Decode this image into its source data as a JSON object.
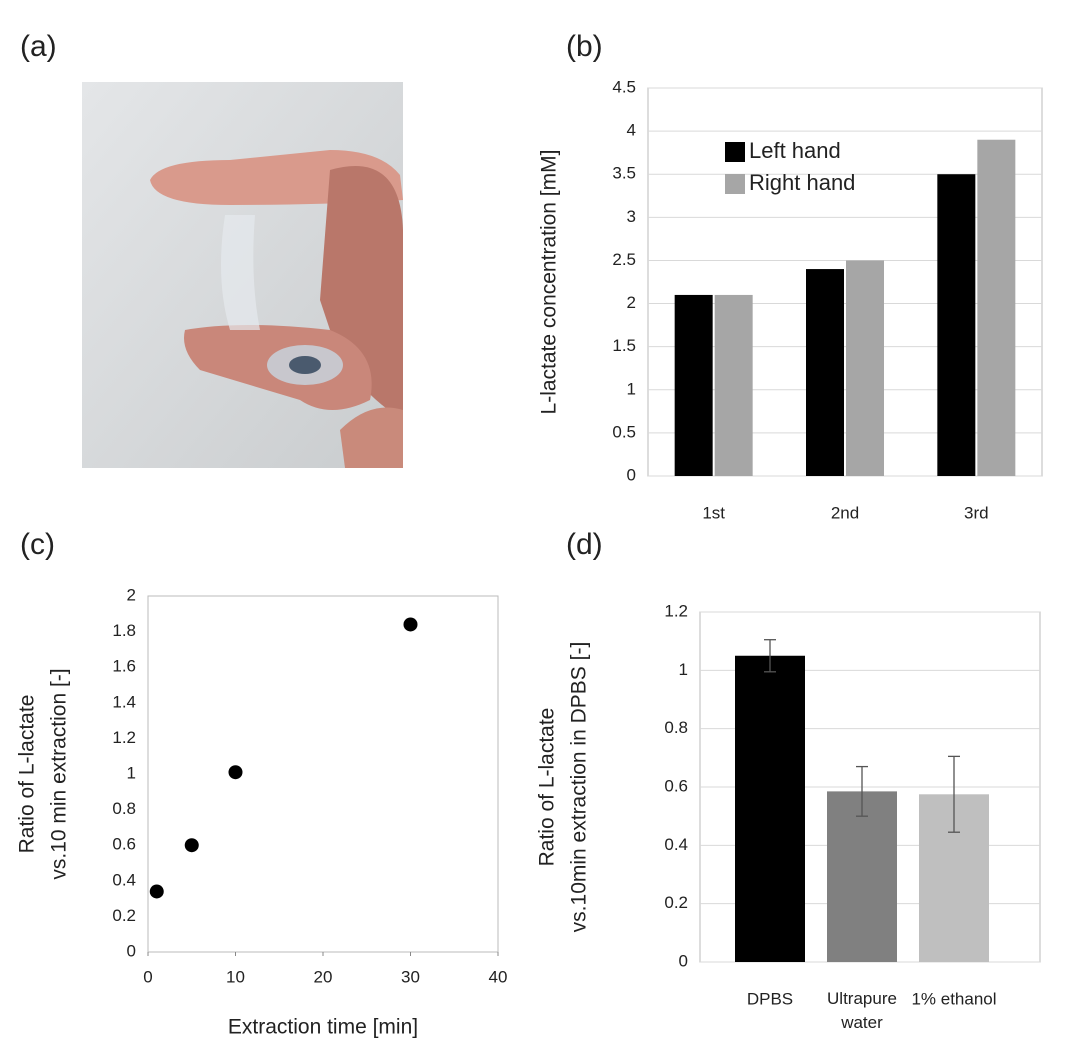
{
  "panel_labels": [
    "(a)",
    "(b)",
    "(c)",
    "(d)"
  ],
  "chart_data": [
    {
      "type": "bar",
      "ylabel": [
        "L-lactate concentration [mM]"
      ],
      "categories": [
        "1st",
        "2nd",
        "3rd"
      ],
      "series": [
        {
          "name": "Left hand",
          "color": "#000000",
          "values": [
            2.1,
            2.4,
            3.5
          ]
        },
        {
          "name": "Right hand",
          "color": "#a6a6a6",
          "values": [
            2.1,
            2.5,
            3.9
          ]
        }
      ],
      "ylim": [
        0,
        4.5
      ],
      "yticks": [
        0,
        0.5,
        1,
        1.5,
        2,
        2.5,
        3,
        3.5,
        4,
        4.5
      ],
      "grid": true,
      "legend": "upper-left"
    },
    {
      "type": "scatter",
      "xlabel": "Extraction time [min]",
      "ylabel": [
        "Ratio of L-lactate",
        "vs.10 min extraction [-]"
      ],
      "x": [
        1,
        5,
        10,
        30
      ],
      "values": [
        0.34,
        0.6,
        1.01,
        1.84
      ],
      "color": "#000000",
      "xlim": [
        0,
        40
      ],
      "xticks": [
        0,
        10,
        20,
        30,
        40
      ],
      "ylim": [
        0,
        2
      ],
      "yticks": [
        0,
        0.2,
        0.4,
        0.6,
        0.8,
        1,
        1.2,
        1.4,
        1.6,
        1.8,
        2
      ],
      "grid": false
    },
    {
      "type": "bar",
      "ylabel": [
        "Ratio of L-lactate",
        "vs.10min extraction in DPBS [-]"
      ],
      "categories": [
        "DPBS",
        "Ultrapure water",
        "1% ethanol"
      ],
      "values": [
        1.05,
        0.585,
        0.575
      ],
      "errors": [
        0.055,
        0.085,
        0.13
      ],
      "colors": [
        "#000000",
        "#808080",
        "#bfbfbf"
      ],
      "ylim": [
        0,
        1.2
      ],
      "yticks": [
        0,
        0.2,
        0.4,
        0.6,
        0.8,
        1,
        1.2
      ],
      "grid": true
    }
  ]
}
